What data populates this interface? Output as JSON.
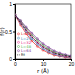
{
  "chart_data": {
    "type": "line",
    "x_label": "r (Å)",
    "y_label": "f(r)",
    "x": [
      0,
      2,
      4,
      6,
      8,
      10,
      12,
      14,
      16,
      18,
      20
    ],
    "series": [
      {
        "name": "L=16",
        "color": "#e41a1c",
        "marker": "circle",
        "values": [
          0.8,
          0.62,
          0.46,
          0.33,
          0.23,
          0.16,
          0.11,
          0.07,
          0.05,
          0.03,
          0.02
        ]
      },
      {
        "name": "L=24",
        "color": "#377eb8",
        "marker": "circle",
        "values": [
          0.8,
          0.65,
          0.5,
          0.37,
          0.27,
          0.19,
          0.13,
          0.09,
          0.06,
          0.04,
          0.03
        ]
      },
      {
        "name": "L=32",
        "color": "#e7298a",
        "marker": "circle",
        "values": [
          0.8,
          0.67,
          0.53,
          0.41,
          0.3,
          0.22,
          0.16,
          0.11,
          0.08,
          0.05,
          0.04
        ]
      },
      {
        "name": "L=48",
        "color": "#4daf4a",
        "marker": "circle",
        "values": [
          0.8,
          0.69,
          0.56,
          0.44,
          0.34,
          0.25,
          0.18,
          0.13,
          0.09,
          0.07,
          0.05
        ]
      },
      {
        "name": "L=64",
        "color": "#7b3294",
        "marker": "circle",
        "values": [
          0.8,
          0.7,
          0.58,
          0.47,
          0.37,
          0.28,
          0.21,
          0.15,
          0.11,
          0.08,
          0.06
        ]
      },
      {
        "name": "fit",
        "color": "#000000",
        "marker": "none",
        "line_style": "dashed",
        "values": [
          0.8,
          0.66,
          0.52,
          0.4,
          0.3,
          0.22,
          0.16,
          0.11,
          0.08,
          0.06,
          0.04
        ]
      }
    ],
    "xlim": [
      0,
      20
    ],
    "xticks": [
      0,
      10,
      20
    ],
    "ylim": [
      0,
      1
    ],
    "yticks": [
      0,
      0.5,
      1
    ],
    "legend": "lower left"
  }
}
